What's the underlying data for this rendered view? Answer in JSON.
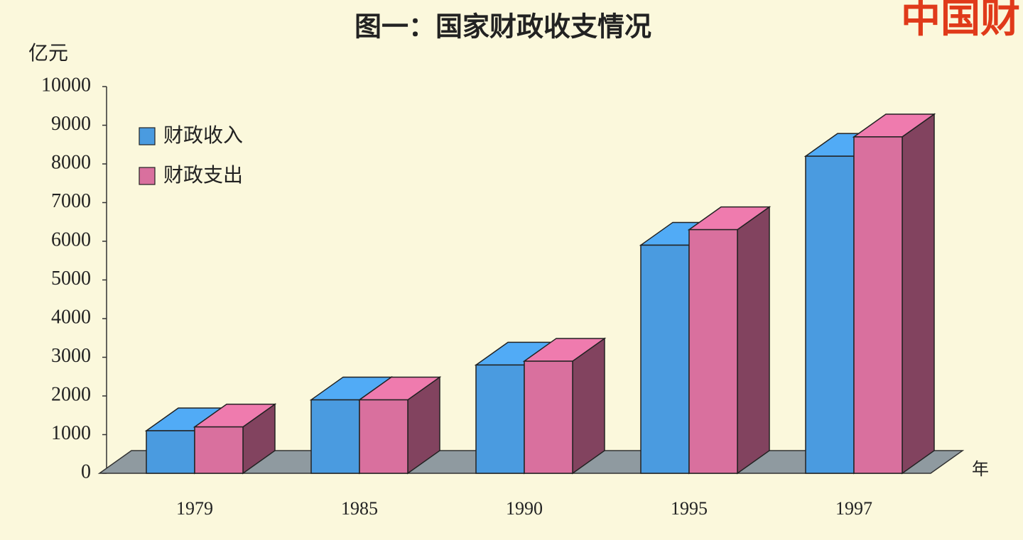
{
  "chart_data": {
    "type": "bar3d",
    "title": "图一：国家财政收支情况",
    "logo": "中国财",
    "y_label": "亿元",
    "x_label": "年",
    "categories": [
      "1979",
      "1985",
      "1990",
      "1995",
      "1997"
    ],
    "series": [
      {
        "name": "财政收入",
        "color": "#4a9be0",
        "values": [
          1100,
          1900,
          2800,
          5900,
          8200
        ]
      },
      {
        "name": "财政支出",
        "color": "#d9709e",
        "values": [
          1200,
          1900,
          2900,
          6300,
          8700
        ]
      }
    ],
    "ylim": [
      0,
      10000
    ],
    "yticks": [
      0,
      1000,
      2000,
      3000,
      4000,
      5000,
      6000,
      7000,
      8000,
      9000,
      10000
    ],
    "legend": "top-left"
  }
}
